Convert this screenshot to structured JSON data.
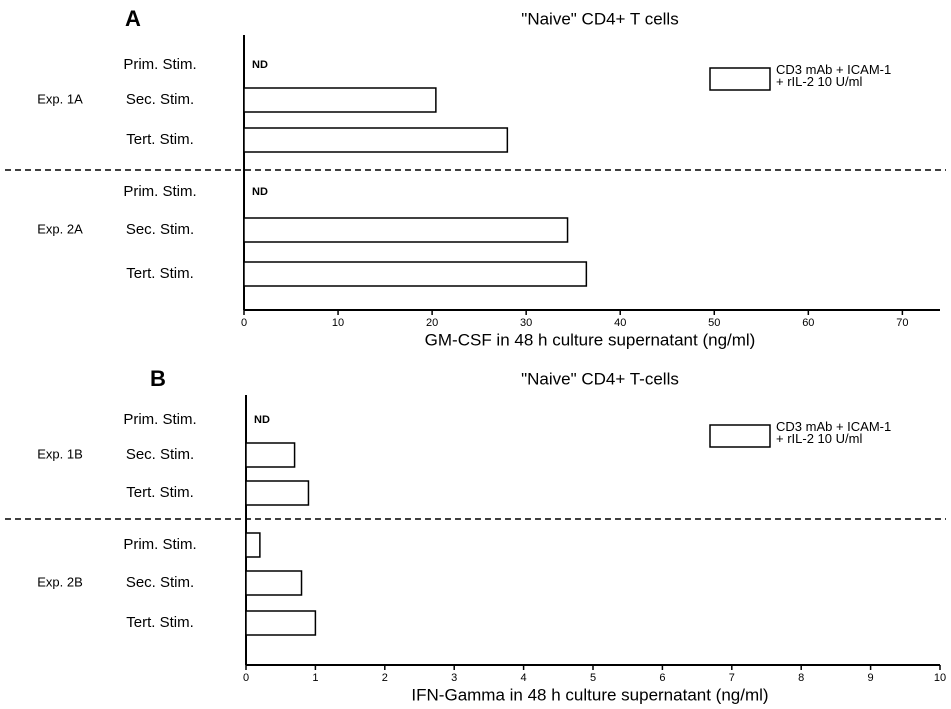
{
  "chart_data": [
    {
      "type": "bar",
      "panel_label": "A",
      "title": "\"Naive\" CD4+ T cells",
      "xlabel": "GM-CSF in 48 h culture supernatant (ng/ml)",
      "groups": [
        "Exp. 1A",
        "Exp. 2A"
      ],
      "categories": [
        "Prim. Stim.",
        "Sec. Stim.",
        "Tert. Stim.",
        "Prim. Stim.",
        "Sec. Stim.",
        "Tert. Stim."
      ],
      "series": [
        {
          "name": "CD3 mAb + ICAM-1\n+ rIL-2 10 U/ml",
          "color": "#ffffff",
          "values": [
            null,
            20.4,
            28,
            null,
            34.4,
            36.4
          ],
          "value_labels": [
            "ND",
            null,
            null,
            "ND",
            null,
            null
          ]
        }
      ],
      "xlim": [
        0,
        74
      ],
      "xticks": [
        0,
        10,
        20,
        30,
        40,
        50,
        60,
        70
      ],
      "legend": "upper right"
    },
    {
      "type": "bar",
      "panel_label": "B",
      "title": "\"Naive\" CD4+ T-cells",
      "xlabel": "IFN-Gamma in 48 h culture supernatant (ng/ml)",
      "groups": [
        "Exp. 1B",
        "Exp. 2B"
      ],
      "categories": [
        "Prim. Stim.",
        "Sec. Stim.",
        "Tert. Stim.",
        "Prim. Stim.",
        "Sec. Stim.",
        "Tert. Stim."
      ],
      "series": [
        {
          "name": "CD3 mAb + ICAM-1\n+ rIL-2 10 U/ml",
          "color": "#ffffff",
          "values": [
            null,
            0.7,
            0.9,
            0.2,
            0.8,
            1.0
          ],
          "value_labels": [
            "ND",
            null,
            null,
            null,
            null,
            null
          ]
        }
      ],
      "xlim": [
        0,
        10
      ],
      "xticks": [
        0,
        1,
        2,
        3,
        4,
        5,
        6,
        7,
        8,
        9,
        10
      ],
      "legend": "upper right"
    }
  ]
}
